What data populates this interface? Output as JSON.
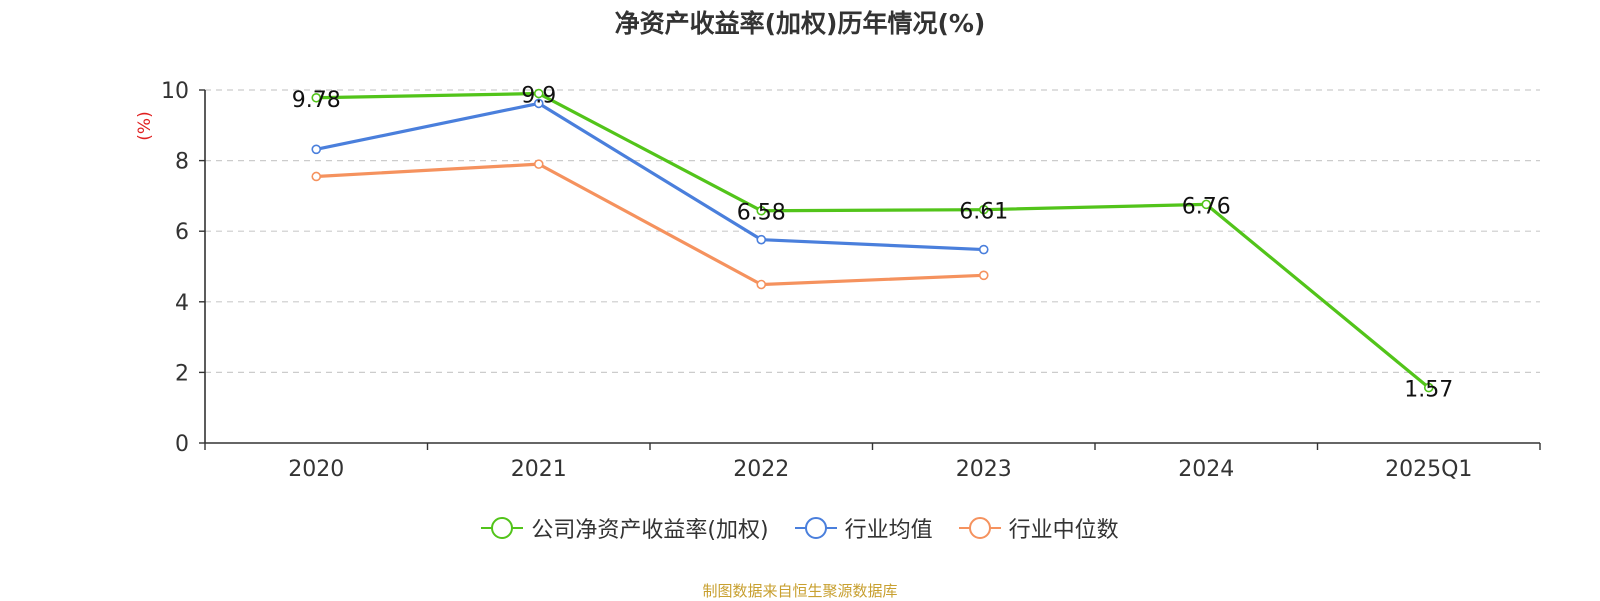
{
  "chart_data": {
    "type": "line",
    "title": "净资产收益率(加权)历年情况(%)",
    "ylabel": "(%)",
    "categories": [
      "2020",
      "2021",
      "2022",
      "2023",
      "2024",
      "2025Q1"
    ],
    "ylim": [
      0,
      10
    ],
    "yticks": [
      0,
      2,
      4,
      6,
      8,
      10
    ],
    "grid": true,
    "legend_position": "bottom",
    "series": [
      {
        "name": "公司净资产收益率(加权)",
        "color": "#52c41a",
        "values": [
          9.78,
          9.9,
          6.58,
          6.61,
          6.76,
          1.57
        ],
        "show_labels": true,
        "labels": [
          "9.78",
          "9.9",
          "6.58",
          "6.61",
          "6.76",
          "1.57"
        ]
      },
      {
        "name": "行业均值",
        "color": "#4a7fdc",
        "values": [
          8.32,
          9.62,
          5.76,
          5.48,
          null,
          null
        ],
        "show_labels": false
      },
      {
        "name": "行业中位数",
        "color": "#f5925e",
        "values": [
          7.55,
          7.9,
          4.49,
          4.75,
          null,
          null
        ],
        "show_labels": false
      }
    ]
  },
  "footer": {
    "source": "制图数据来自恒生聚源数据库"
  }
}
